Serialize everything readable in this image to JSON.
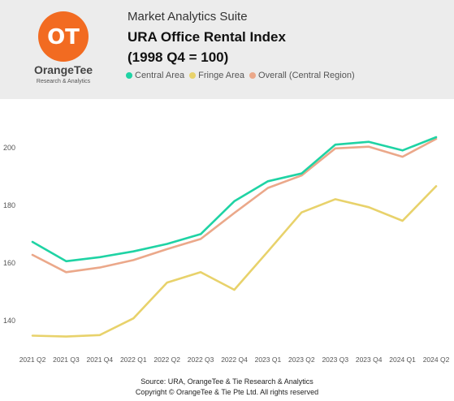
{
  "header": {
    "logo": {
      "name": "OrangeTee",
      "tagline": "Research & Analytics",
      "mark": "OT"
    },
    "suite_label": "Market Analytics Suite",
    "title": "URA Office Rental Index",
    "subtitle": "(1998 Q4 = 100)"
  },
  "footer": {
    "source": "Source: URA, OrangeTee & Tie Research & Analytics",
    "copyright": "Copyright © OrangeTee & Tie Pte Ltd. All rights reserved"
  },
  "chart_data": {
    "type": "line",
    "title": "URA Office Rental Index",
    "subtitle": "(1998 Q4 = 100)",
    "x": [
      "2021 Q2",
      "2021 Q3",
      "2021 Q4",
      "2022 Q1",
      "2022 Q2",
      "2022 Q3",
      "2022 Q4",
      "2023 Q1",
      "2023 Q2",
      "2023 Q3",
      "2023 Q4",
      "2024 Q1",
      "2024 Q2"
    ],
    "series": [
      {
        "name": "Central Area",
        "color": "#1fd3a4",
        "values": [
          167.3,
          160.6,
          162.0,
          164.0,
          166.6,
          170.0,
          181.4,
          188.3,
          191.0,
          201.0,
          202.0,
          199.0,
          203.6
        ]
      },
      {
        "name": "Fringe Area",
        "color": "#e8d26b",
        "values": [
          134.8,
          134.5,
          135.0,
          140.8,
          153.2,
          156.8,
          150.7,
          164.0,
          177.5,
          182.1,
          179.3,
          174.6,
          186.6
        ]
      },
      {
        "name": "Overall (Central Region)",
        "color": "#eba88a",
        "values": [
          162.8,
          156.8,
          158.4,
          161.0,
          164.8,
          168.3,
          177.3,
          186.0,
          190.3,
          199.7,
          200.3,
          196.8,
          203.0
        ]
      }
    ],
    "yticks": [
      140,
      160,
      180,
      200
    ],
    "ylim": [
      131,
      214
    ],
    "grid": false,
    "legend": "top"
  }
}
